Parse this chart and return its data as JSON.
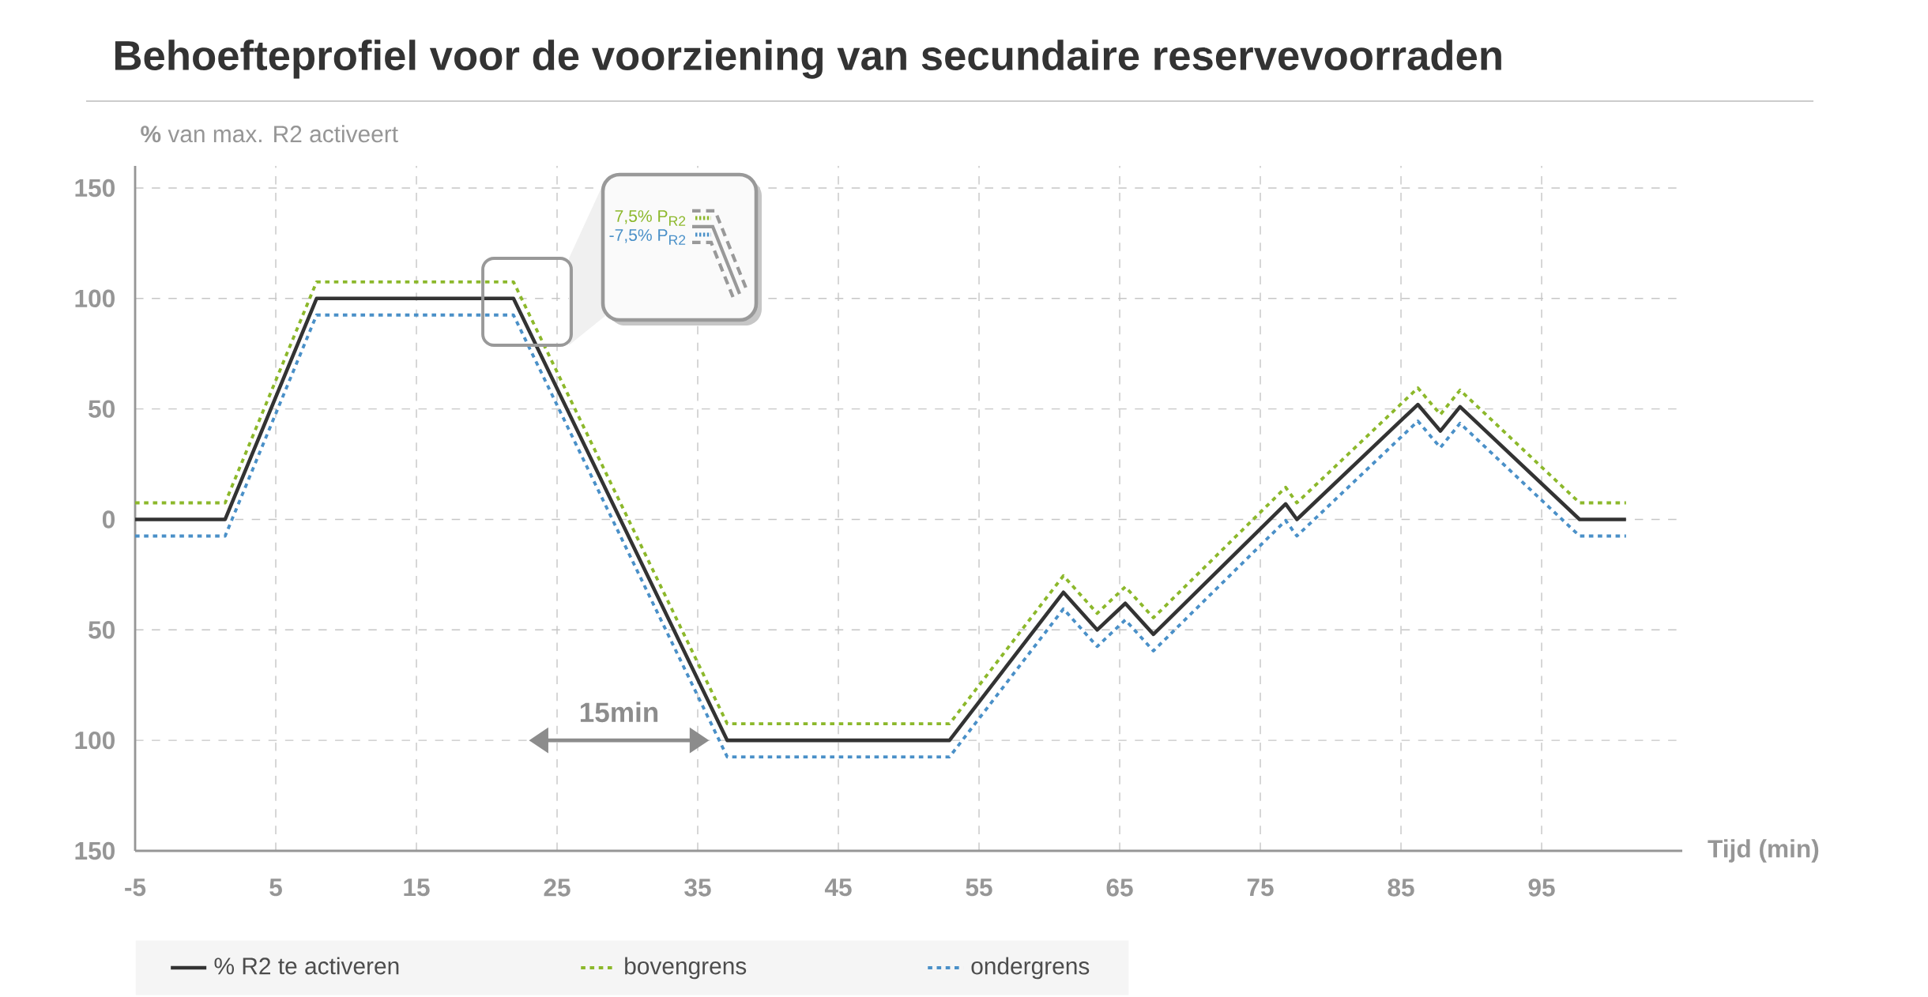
{
  "chart_data": {
    "type": "line",
    "title": "Behoefteprofiel voor de voorziening van secundaire reservevoorraden",
    "ylabel": "**%** van max. R2 activeert",
    "xlabel": "Tijd (min)",
    "x": [
      -5,
      1.4,
      7.9,
      21.9,
      37.1,
      52.9,
      61.0,
      63.4,
      65.4,
      67.4,
      76.8,
      77.6,
      86.2,
      87.8,
      89.2,
      97.7,
      101.0
    ],
    "series": [
      {
        "name": "% R2 te activeren",
        "color": "#333333",
        "line_style": "solid",
        "values": [
          0,
          0,
          100,
          100,
          -100,
          -100,
          -33,
          -50,
          -38,
          -52,
          7,
          0,
          52,
          40,
          51,
          0,
          0
        ]
      },
      {
        "name": "bovengrens",
        "color": "#8cb82b",
        "line_style": "dotted",
        "values": [
          7.5,
          7.5,
          107.5,
          107.5,
          -92.5,
          -92.5,
          -25.5,
          -42.5,
          -30.5,
          -44.5,
          14.5,
          7.5,
          59.5,
          47.5,
          58.5,
          7.5,
          7.5
        ]
      },
      {
        "name": "ondergrens",
        "color": "#4a90c8",
        "line_style": "dotted",
        "values": [
          -7.5,
          -7.5,
          92.5,
          92.5,
          -107.5,
          -107.5,
          -40.5,
          -57.5,
          -45.5,
          -59.5,
          -0.5,
          -7.5,
          44.5,
          32.5,
          43.5,
          -7.5,
          -7.5
        ]
      }
    ],
    "xlim": [
      -5,
      105
    ],
    "ylim": [
      -150,
      160
    ],
    "xticks": [
      -5,
      5,
      15,
      25,
      35,
      45,
      55,
      65,
      75,
      85,
      95
    ],
    "yticks": [
      {
        "value": -150,
        "label": "150"
      },
      {
        "value": -100,
        "label": "100"
      },
      {
        "value": -50,
        "label": "50"
      },
      0,
      50,
      100,
      150
    ],
    "grid": true,
    "legend": "bottom",
    "annotations": [
      "15min",
      "7,5% P$_{R2}$",
      "-7,5% P$_{R2}$"
    ]
  }
}
